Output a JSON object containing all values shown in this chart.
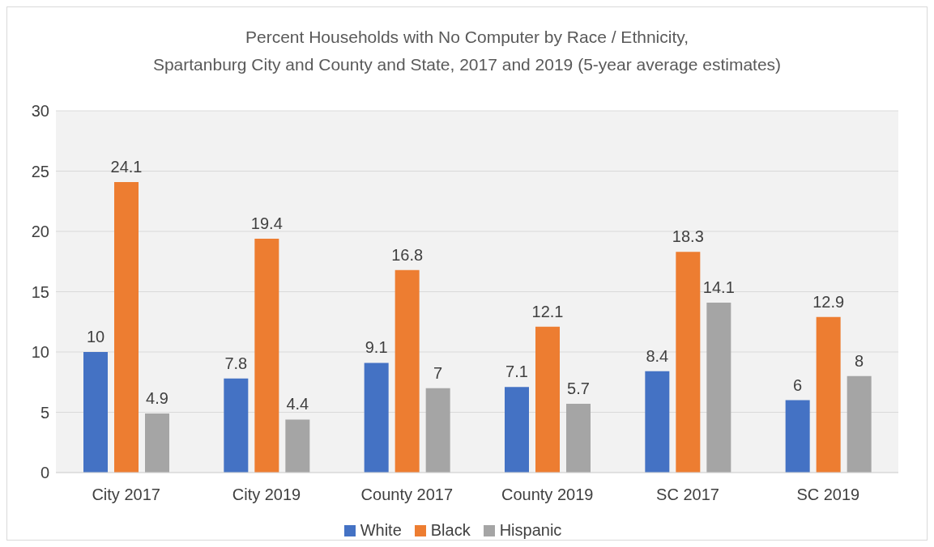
{
  "chart_data": {
    "type": "bar",
    "title": "Percent Households with No Computer by Race / Ethnicity,\nSpartanburg City and County and State, 2017 and 2019 (5-year average estimates)",
    "categories": [
      "City 2017",
      "City 2019",
      "County 2017",
      "County 2019",
      "SC 2017",
      "SC 2019"
    ],
    "series": [
      {
        "name": "White",
        "color": "#4472c4",
        "values": [
          10,
          7.8,
          9.1,
          7.1,
          8.4,
          6
        ]
      },
      {
        "name": "Black",
        "color": "#ed7d31",
        "values": [
          24.1,
          19.4,
          16.8,
          12.1,
          18.3,
          12.9
        ]
      },
      {
        "name": "Hispanic",
        "color": "#a5a5a5",
        "values": [
          4.9,
          4.4,
          7,
          5.7,
          14.1,
          8
        ]
      }
    ],
    "ylim": [
      0,
      30
    ],
    "yticks": [
      0,
      5,
      10,
      15,
      20,
      25,
      30
    ],
    "grid": "y",
    "legend": "bottom",
    "data_labels": true
  }
}
